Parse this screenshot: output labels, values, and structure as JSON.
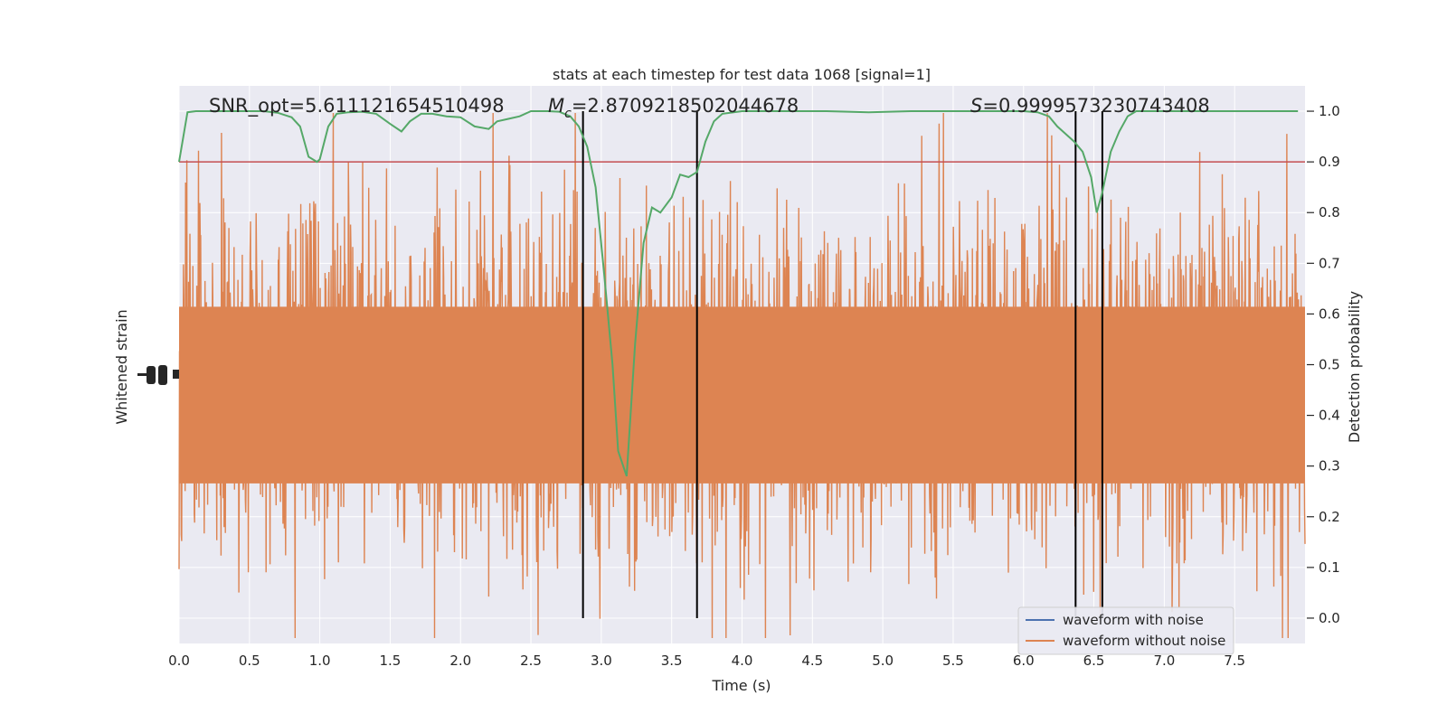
{
  "chart_data": {
    "type": "line",
    "title": "stats at each timestep for test data 1068 [signal=1]",
    "xlabel": "Time (s)",
    "ylabel_left": "Whitened strain",
    "ylabel_right": "Detection probability",
    "xlim": [
      0.0,
      8.0
    ],
    "ylim_right": [
      -0.05,
      1.05
    ],
    "x_ticks": [
      "0.0",
      "0.5",
      "1.0",
      "1.5",
      "2.0",
      "2.5",
      "3.0",
      "3.5",
      "4.0",
      "4.5",
      "5.0",
      "5.5",
      "6.0",
      "6.5",
      "7.0",
      "7.5"
    ],
    "x_tick_values": [
      0,
      0.5,
      1,
      1.5,
      2,
      2.5,
      3,
      3.5,
      4,
      4.5,
      5,
      5.5,
      6,
      6.5,
      7,
      7.5
    ],
    "y_right_ticks": [
      "0.0",
      "0.1",
      "0.2",
      "0.3",
      "0.4",
      "0.5",
      "0.6",
      "0.7",
      "0.8",
      "0.9",
      "1.0"
    ],
    "y_right_tick_values": [
      0,
      0.1,
      0.2,
      0.3,
      0.4,
      0.5,
      0.6,
      0.7,
      0.8,
      0.9,
      1.0
    ],
    "grid": true,
    "legend_position": "lower-right",
    "annotations": {
      "snr": "SNR_opt=5.611121654510498",
      "mc_symbol": "M",
      "mc_subscript": "c",
      "mc_value": "=2.8709218502044678",
      "s_symbol": "S",
      "s_value": "=0.9999573230743408"
    },
    "threshold": 0.9,
    "vertical_lines": [
      2.87,
      3.68,
      6.37,
      6.56
    ],
    "colors": {
      "plot_bg": "#eaeaf2",
      "grid": "#ffffff",
      "noise": "#dd8452",
      "signal": "#4c72b0",
      "probability": "#55a868",
      "threshold": "#c44e52",
      "vline": "#000000",
      "text": "#262626"
    },
    "series": [
      {
        "name": "waveform with noise",
        "color": "#4c72b0"
      },
      {
        "name": "waveform without noise",
        "color": "#dd8452"
      }
    ],
    "probability": {
      "x": [
        0.0,
        0.06,
        0.12,
        0.2,
        0.3,
        0.4,
        0.5,
        0.6,
        0.7,
        0.8,
        0.86,
        0.92,
        0.98,
        1.0,
        1.06,
        1.12,
        1.2,
        1.3,
        1.4,
        1.5,
        1.58,
        1.64,
        1.72,
        1.8,
        1.9,
        2.0,
        2.1,
        2.2,
        2.26,
        2.34,
        2.42,
        2.5,
        2.56,
        2.62,
        2.7,
        2.78,
        2.84,
        2.9,
        2.96,
        3.02,
        3.08,
        3.12,
        3.18,
        3.24,
        3.3,
        3.36,
        3.42,
        3.5,
        3.56,
        3.62,
        3.68,
        3.74,
        3.8,
        3.86,
        3.94,
        4.0,
        4.1,
        4.3,
        4.6,
        4.9,
        5.2,
        5.6,
        6.0,
        6.1,
        6.18,
        6.24,
        6.3,
        6.36,
        6.42,
        6.48,
        6.52,
        6.56,
        6.62,
        6.68,
        6.74,
        6.8,
        7.0,
        7.5,
        7.95
      ],
      "y": [
        0.9,
        0.998,
        1.0,
        1.0,
        1.0,
        1.0,
        1.0,
        1.0,
        0.997,
        0.988,
        0.97,
        0.91,
        0.9,
        0.905,
        0.97,
        0.995,
        0.998,
        0.999,
        0.995,
        0.975,
        0.96,
        0.98,
        0.995,
        0.995,
        0.99,
        0.988,
        0.97,
        0.965,
        0.98,
        0.985,
        0.99,
        1.0,
        1.0,
        1.0,
        0.999,
        0.99,
        0.97,
        0.93,
        0.85,
        0.68,
        0.5,
        0.33,
        0.28,
        0.54,
        0.74,
        0.81,
        0.8,
        0.83,
        0.875,
        0.87,
        0.88,
        0.94,
        0.98,
        0.995,
        0.998,
        1.0,
        1.0,
        1.0,
        1.0,
        0.998,
        1.0,
        1.0,
        1.0,
        0.998,
        0.99,
        0.97,
        0.955,
        0.94,
        0.92,
        0.87,
        0.8,
        0.84,
        0.92,
        0.96,
        0.99,
        1.0,
        1.0,
        1.0,
        1.0
      ]
    }
  }
}
